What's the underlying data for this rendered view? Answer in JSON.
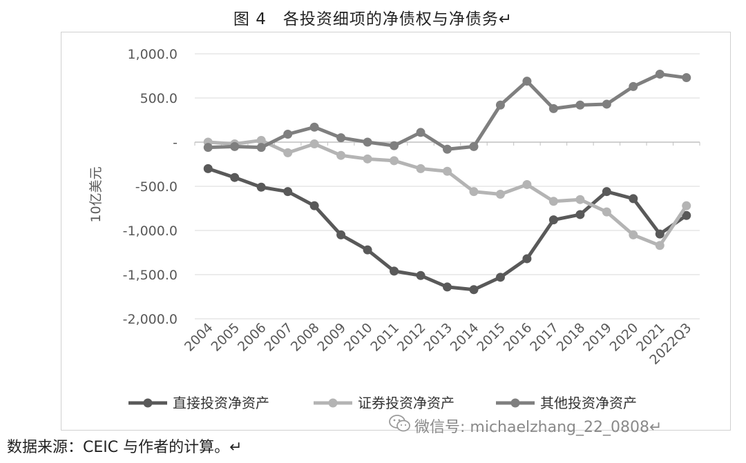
{
  "title": "图 4　各投资细项的净债权与净债务↵",
  "source": "数据来源：CEIC 与作者的计算。↵",
  "watermark": "微信号: michaelzhang_22_0808↵",
  "chart_data": {
    "type": "line",
    "ylabel": "10亿美元",
    "ylim": [
      -2000,
      1000
    ],
    "yticks": [
      1000,
      500,
      0,
      -500,
      -1000,
      -1500,
      -2000
    ],
    "ytick_labels": [
      "1,000.0",
      "500.0",
      "-",
      "-500.0",
      "-1,000.0",
      "-1,500.0",
      "-2,000.0"
    ],
    "categories": [
      "2004",
      "2005",
      "2006",
      "2007",
      "2008",
      "2009",
      "2010",
      "2011",
      "2012",
      "2013",
      "2014",
      "2015",
      "2016",
      "2017",
      "2018",
      "2019",
      "2020",
      "2021",
      "2022Q3"
    ],
    "grid": true,
    "legend_position": "bottom",
    "series": [
      {
        "name": "直接投资净资产",
        "color": "#595959",
        "values": [
          -300,
          -400,
          -510,
          -560,
          -720,
          -1050,
          -1220,
          -1460,
          -1510,
          -1640,
          -1670,
          -1530,
          -1320,
          -880,
          -820,
          -560,
          -640,
          -1040,
          -830
        ]
      },
      {
        "name": "证券投资净资产",
        "color": "#b4b4b4",
        "values": [
          0,
          -20,
          20,
          -120,
          -20,
          -150,
          -190,
          -210,
          -300,
          -330,
          -560,
          -590,
          -480,
          -670,
          -650,
          -790,
          -1050,
          -1170,
          -720
        ]
      },
      {
        "name": "其他投资净资产",
        "color": "#7f7f7f",
        "values": [
          -60,
          -50,
          -60,
          90,
          170,
          50,
          0,
          -40,
          110,
          -80,
          -50,
          420,
          690,
          380,
          420,
          430,
          630,
          770,
          730
        ]
      }
    ]
  }
}
